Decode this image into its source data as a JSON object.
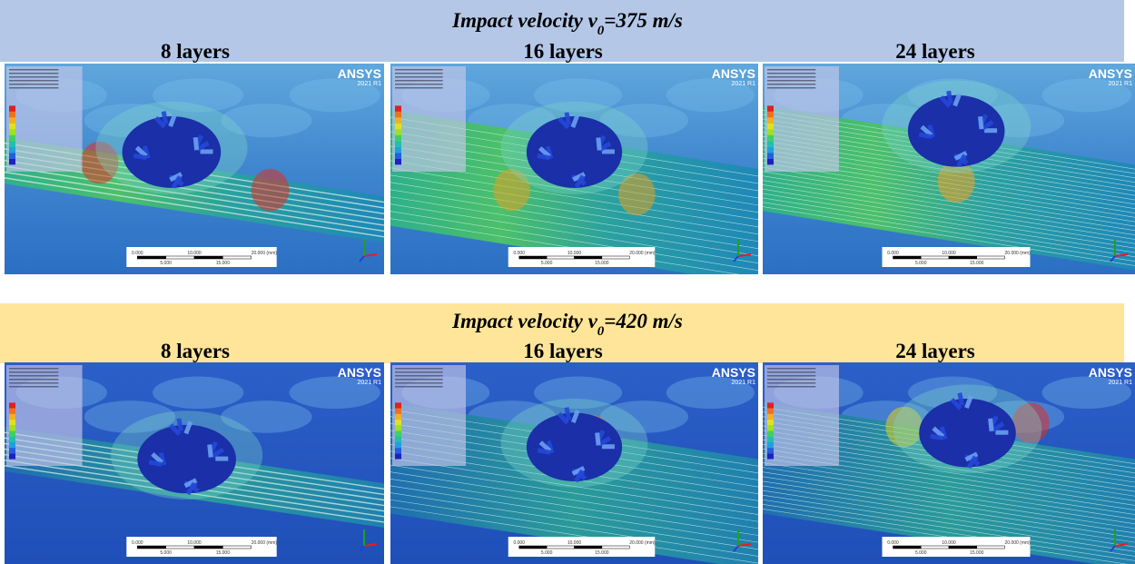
{
  "figure": {
    "rows": [
      {
        "title": {
          "prefix": "Impact velocity v",
          "sub": "0",
          "suffix": "=375 m/s"
        },
        "columns": [
          "8 layers",
          "16 layers",
          "24 layers"
        ],
        "panels": [
          {
            "logo": "ANSYS",
            "release": "2021 R1"
          },
          {
            "logo": "ANSYS",
            "release": "2021 R1"
          },
          {
            "logo": "ANSYS",
            "release": "2021 R1"
          }
        ]
      },
      {
        "title": {
          "prefix": "Impact velocity v",
          "sub": "0",
          "suffix": "=420 m/s"
        },
        "columns": [
          "8 layers",
          "16 layers",
          "24 layers"
        ],
        "panels": [
          {
            "logo": "ANSYS",
            "release": "2021 R1"
          },
          {
            "logo": "ANSYS",
            "release": "2021 R1"
          },
          {
            "logo": "ANSYS",
            "release": "2021 R1"
          }
        ]
      }
    ],
    "scale_bar": {
      "major": [
        "0.000",
        "10.000",
        "20.000 (mm)"
      ],
      "minor": [
        "5.000",
        "15.000"
      ]
    }
  }
}
